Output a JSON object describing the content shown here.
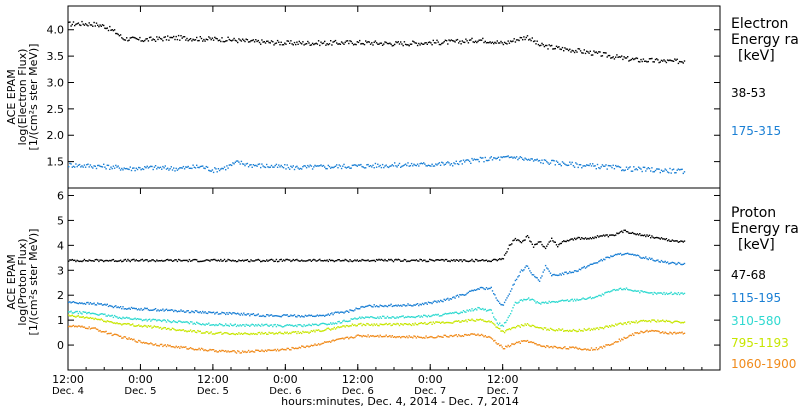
{
  "chart_data": [
    {
      "type": "scatter",
      "panel": "electron",
      "ylabel_lines": [
        "ACE EPAM",
        "log(Electron Flux)",
        "[1/(cm²s ster MeV)]"
      ],
      "ylim": [
        1.0,
        4.45
      ],
      "yticks": [
        "1.5",
        "2.0",
        "2.5",
        "3.0",
        "3.5",
        "4.0"
      ],
      "ytick_values": [
        1.5,
        2.0,
        2.5,
        3.0,
        3.5,
        4.0
      ],
      "legend_title": [
        "Electron",
        "Energy ran",
        "[keV]"
      ],
      "series": [
        {
          "name": "38-53",
          "color": "#000000",
          "points": [
            [
              0,
              4.12
            ],
            [
              2,
              4.13
            ],
            [
              4,
              4.12
            ],
            [
              6,
              4.08
            ],
            [
              8,
              3.95
            ],
            [
              9,
              3.85
            ],
            [
              12,
              3.82
            ],
            [
              18,
              3.86
            ],
            [
              22,
              3.84
            ],
            [
              26,
              3.83
            ],
            [
              30,
              3.79
            ],
            [
              36,
              3.76
            ],
            [
              42,
              3.76
            ],
            [
              48,
              3.77
            ],
            [
              54,
              3.75
            ],
            [
              58,
              3.76
            ],
            [
              60,
              3.77
            ],
            [
              64,
              3.78
            ],
            [
              66,
              3.8
            ],
            [
              68,
              3.82
            ],
            [
              70,
              3.8
            ],
            [
              72,
              3.75
            ],
            [
              74,
              3.82
            ],
            [
              76,
              3.88
            ],
            [
              77,
              3.8
            ],
            [
              78,
              3.72
            ],
            [
              80,
              3.68
            ],
            [
              84,
              3.62
            ],
            [
              88,
              3.55
            ],
            [
              92,
              3.47
            ],
            [
              94,
              3.44
            ],
            [
              98,
              3.42
            ],
            [
              100,
              3.41
            ],
            [
              102,
              3.42
            ]
          ]
        },
        {
          "name": "175-315",
          "color": "#1a7fd4",
          "points": [
            [
              0,
              1.45
            ],
            [
              6,
              1.42
            ],
            [
              10,
              1.38
            ],
            [
              14,
              1.4
            ],
            [
              18,
              1.38
            ],
            [
              22,
              1.42
            ],
            [
              24,
              1.35
            ],
            [
              26,
              1.4
            ],
            [
              28,
              1.5
            ],
            [
              30,
              1.45
            ],
            [
              34,
              1.42
            ],
            [
              38,
              1.4
            ],
            [
              44,
              1.42
            ],
            [
              48,
              1.43
            ],
            [
              52,
              1.44
            ],
            [
              56,
              1.45
            ],
            [
              60,
              1.46
            ],
            [
              64,
              1.48
            ],
            [
              68,
              1.55
            ],
            [
              72,
              1.58
            ],
            [
              74,
              1.6
            ],
            [
              76,
              1.55
            ],
            [
              80,
              1.5
            ],
            [
              84,
              1.45
            ],
            [
              88,
              1.42
            ],
            [
              92,
              1.38
            ],
            [
              96,
              1.36
            ],
            [
              100,
              1.34
            ],
            [
              102,
              1.32
            ]
          ]
        }
      ]
    },
    {
      "type": "scatter",
      "panel": "proton",
      "ylabel_lines": [
        "ACE EPAM",
        "log(Proton Flux)",
        "[1/(cm²s ster MeV)]"
      ],
      "ylim": [
        -1.0,
        6.3
      ],
      "yticks": [
        "0",
        "1",
        "2",
        "3",
        "4",
        "5",
        "6"
      ],
      "ytick_values": [
        0,
        1,
        2,
        3,
        4,
        5,
        6
      ],
      "legend_title": [
        "Proton",
        "Energy ran",
        "[keV]"
      ],
      "series": [
        {
          "name": "47-68",
          "color": "#000000",
          "points": [
            [
              0,
              3.42
            ],
            [
              10,
              3.42
            ],
            [
              20,
              3.42
            ],
            [
              30,
              3.42
            ],
            [
              40,
              3.42
            ],
            [
              50,
              3.42
            ],
            [
              60,
              3.42
            ],
            [
              66,
              3.42
            ],
            [
              70,
              3.42
            ],
            [
              72,
              3.5
            ],
            [
              73,
              4.0
            ],
            [
              74,
              4.3
            ],
            [
              75,
              4.1
            ],
            [
              76,
              4.4
            ],
            [
              77,
              4.0
            ],
            [
              78,
              4.2
            ],
            [
              79,
              3.9
            ],
            [
              80,
              4.3
            ],
            [
              81,
              4.0
            ],
            [
              82,
              4.2
            ],
            [
              84,
              4.3
            ],
            [
              86,
              4.3
            ],
            [
              88,
              4.4
            ],
            [
              90,
              4.4
            ],
            [
              92,
              4.6
            ],
            [
              94,
              4.5
            ],
            [
              96,
              4.4
            ],
            [
              98,
              4.3
            ],
            [
              100,
              4.2
            ],
            [
              102,
              4.2
            ]
          ]
        },
        {
          "name": "115-195",
          "color": "#1a7fd4",
          "points": [
            [
              0,
              1.75
            ],
            [
              3,
              1.7
            ],
            [
              6,
              1.65
            ],
            [
              8,
              1.55
            ],
            [
              10,
              1.5
            ],
            [
              14,
              1.45
            ],
            [
              18,
              1.4
            ],
            [
              22,
              1.35
            ],
            [
              26,
              1.3
            ],
            [
              30,
              1.25
            ],
            [
              34,
              1.2
            ],
            [
              38,
              1.2
            ],
            [
              42,
              1.2
            ],
            [
              44,
              1.3
            ],
            [
              46,
              1.35
            ],
            [
              48,
              1.5
            ],
            [
              50,
              1.6
            ],
            [
              54,
              1.62
            ],
            [
              58,
              1.65
            ],
            [
              62,
              1.8
            ],
            [
              64,
              1.95
            ],
            [
              66,
              2.1
            ],
            [
              68,
              2.3
            ],
            [
              70,
              2.3
            ],
            [
              71,
              1.8
            ],
            [
              72,
              1.6
            ],
            [
              73,
              2.1
            ],
            [
              74,
              2.6
            ],
            [
              75,
              3.0
            ],
            [
              76,
              3.2
            ],
            [
              77,
              2.8
            ],
            [
              78,
              2.6
            ],
            [
              79,
              3.2
            ],
            [
              80,
              2.8
            ],
            [
              82,
              2.9
            ],
            [
              84,
              3.0
            ],
            [
              86,
              3.2
            ],
            [
              88,
              3.4
            ],
            [
              90,
              3.6
            ],
            [
              92,
              3.7
            ],
            [
              94,
              3.6
            ],
            [
              96,
              3.5
            ],
            [
              98,
              3.4
            ],
            [
              100,
              3.3
            ],
            [
              102,
              3.3
            ]
          ]
        },
        {
          "name": "310-580",
          "color": "#2ed9d0",
          "points": [
            [
              0,
              1.35
            ],
            [
              4,
              1.3
            ],
            [
              8,
              1.15
            ],
            [
              12,
              1.05
            ],
            [
              16,
              1.0
            ],
            [
              20,
              0.92
            ],
            [
              24,
              0.85
            ],
            [
              28,
              0.82
            ],
            [
              32,
              0.82
            ],
            [
              36,
              0.8
            ],
            [
              40,
              0.82
            ],
            [
              44,
              0.9
            ],
            [
              46,
              1.0
            ],
            [
              48,
              1.1
            ],
            [
              52,
              1.15
            ],
            [
              56,
              1.15
            ],
            [
              60,
              1.2
            ],
            [
              64,
              1.3
            ],
            [
              66,
              1.4
            ],
            [
              68,
              1.5
            ],
            [
              70,
              1.4
            ],
            [
              71,
              0.9
            ],
            [
              72,
              0.8
            ],
            [
              73,
              1.2
            ],
            [
              74,
              1.7
            ],
            [
              76,
              1.9
            ],
            [
              78,
              1.7
            ],
            [
              80,
              1.75
            ],
            [
              82,
              1.8
            ],
            [
              84,
              1.85
            ],
            [
              86,
              1.9
            ],
            [
              88,
              2.0
            ],
            [
              90,
              2.2
            ],
            [
              92,
              2.3
            ],
            [
              94,
              2.2
            ],
            [
              96,
              2.1
            ],
            [
              98,
              2.1
            ],
            [
              100,
              2.1
            ],
            [
              102,
              2.1
            ]
          ]
        },
        {
          "name": "795-1193",
          "color": "#c7e600",
          "points": [
            [
              0,
              1.2
            ],
            [
              4,
              1.1
            ],
            [
              8,
              0.9
            ],
            [
              12,
              0.8
            ],
            [
              16,
              0.7
            ],
            [
              20,
              0.6
            ],
            [
              24,
              0.5
            ],
            [
              28,
              0.48
            ],
            [
              32,
              0.5
            ],
            [
              36,
              0.5
            ],
            [
              40,
              0.55
            ],
            [
              44,
              0.7
            ],
            [
              46,
              0.8
            ],
            [
              48,
              0.85
            ],
            [
              52,
              0.85
            ],
            [
              56,
              0.85
            ],
            [
              60,
              0.9
            ],
            [
              64,
              0.95
            ],
            [
              66,
              1.0
            ],
            [
              68,
              1.05
            ],
            [
              70,
              0.95
            ],
            [
              72,
              0.55
            ],
            [
              74,
              0.75
            ],
            [
              76,
              0.85
            ],
            [
              78,
              0.7
            ],
            [
              80,
              0.65
            ],
            [
              84,
              0.6
            ],
            [
              86,
              0.65
            ],
            [
              88,
              0.7
            ],
            [
              90,
              0.8
            ],
            [
              92,
              0.9
            ],
            [
              94,
              0.95
            ],
            [
              96,
              1.0
            ],
            [
              98,
              1.0
            ],
            [
              100,
              0.95
            ],
            [
              102,
              0.95
            ]
          ]
        },
        {
          "name": "1060-1900",
          "color": "#f08a1a",
          "points": [
            [
              0,
              0.8
            ],
            [
              4,
              0.7
            ],
            [
              8,
              0.4
            ],
            [
              12,
              0.15
            ],
            [
              16,
              0.0
            ],
            [
              20,
              -0.1
            ],
            [
              24,
              -0.2
            ],
            [
              28,
              -0.25
            ],
            [
              32,
              -0.2
            ],
            [
              36,
              -0.15
            ],
            [
              40,
              0.0
            ],
            [
              44,
              0.2
            ],
            [
              46,
              0.3
            ],
            [
              48,
              0.4
            ],
            [
              52,
              0.4
            ],
            [
              56,
              0.35
            ],
            [
              60,
              0.35
            ],
            [
              64,
              0.4
            ],
            [
              68,
              0.45
            ],
            [
              70,
              0.3
            ],
            [
              72,
              -0.1
            ],
            [
              74,
              0.1
            ],
            [
              76,
              0.2
            ],
            [
              78,
              0.0
            ],
            [
              80,
              -0.05
            ],
            [
              84,
              -0.1
            ],
            [
              86,
              -0.15
            ],
            [
              88,
              -0.1
            ],
            [
              90,
              0.1
            ],
            [
              92,
              0.3
            ],
            [
              94,
              0.5
            ],
            [
              96,
              0.6
            ],
            [
              98,
              0.55
            ],
            [
              100,
              0.5
            ],
            [
              102,
              0.5
            ]
          ]
        }
      ]
    }
  ],
  "x_axis": {
    "xlim_hours": [
      0,
      108
    ],
    "ticks": [
      {
        "hours": 0,
        "time": "12:00",
        "date": "Dec. 4"
      },
      {
        "hours": 12,
        "time": "0:00",
        "date": "Dec. 5"
      },
      {
        "hours": 24,
        "time": "12:00",
        "date": "Dec. 5"
      },
      {
        "hours": 36,
        "time": "0:00",
        "date": "Dec. 6"
      },
      {
        "hours": 48,
        "time": "12:00",
        "date": "Dec. 6"
      },
      {
        "hours": 60,
        "time": "0:00",
        "date": "Dec. 7"
      },
      {
        "hours": 72,
        "time": "12:00",
        "date": "Dec. 7"
      }
    ],
    "xlabel": "hours:minutes, Dec.  4, 2014 - Dec.  7, 2014"
  }
}
